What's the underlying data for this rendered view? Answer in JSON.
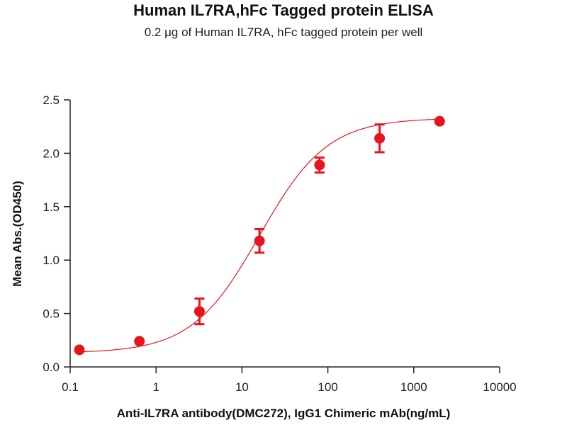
{
  "chart_data": {
    "type": "scatter",
    "title": "Human IL7RA,hFc Tagged protein ELISA",
    "subtitle": "0.2 μg of Human IL7RA, hFc tagged protein per well",
    "xlabel": "Anti-IL7RA antibody(DMC272), IgG1 Chimeric mAb(ng/mL)",
    "ylabel": "Mean Abs.(OD450)",
    "xscale": "log",
    "xlim": [
      0.1,
      10000
    ],
    "ylim": [
      0,
      2.5
    ],
    "xticks": [
      "0.1",
      "1",
      "10",
      "100",
      "1000",
      "10000"
    ],
    "yticks": [
      "0.0",
      "0.5",
      "1.0",
      "1.5",
      "2.0",
      "2.5"
    ],
    "grid": false,
    "color": "#e8141b",
    "x": [
      0.128,
      0.64,
      3.2,
      16,
      80,
      400,
      2000
    ],
    "y": [
      0.16,
      0.24,
      0.52,
      1.18,
      1.89,
      2.14,
      2.3
    ],
    "error": [
      0,
      0,
      0.12,
      0.11,
      0.07,
      0.13,
      0
    ],
    "fit_curve": "4PL sigmoid"
  }
}
